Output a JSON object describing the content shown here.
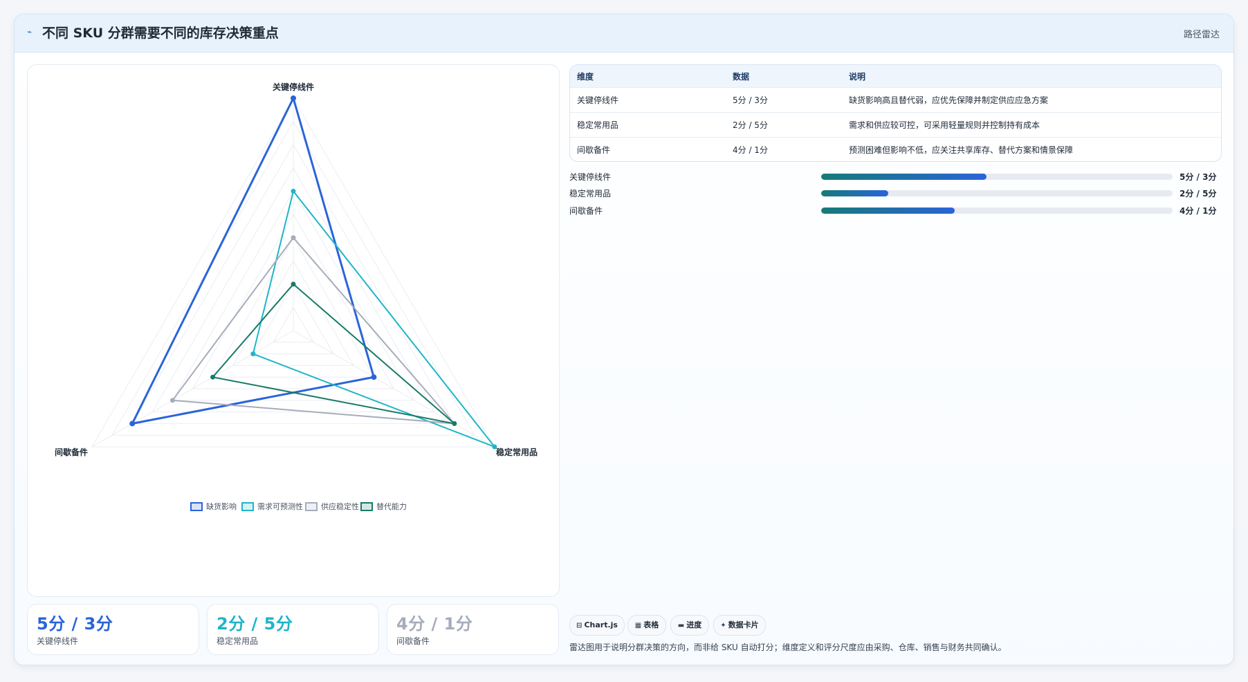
{
  "header": {
    "icon": "route-icon",
    "title": "不同 SKU 分群需要不同的库存决策重点",
    "right_label": "路径雷达"
  },
  "chart_data": {
    "type": "radar",
    "axes": [
      "关键停线件",
      "稳定常用品",
      "间歇备件"
    ],
    "range": [
      0,
      5
    ],
    "legend_position": "bottom",
    "series": [
      {
        "name": "缺货影响",
        "color": "#2a64d8",
        "values": [
          5,
          2,
          4
        ]
      },
      {
        "name": "需求可预测性",
        "color": "#1fb5c8",
        "values": [
          3,
          5,
          1
        ]
      },
      {
        "name": "供应稳定性",
        "color": "#a5acbb",
        "values": [
          2,
          4,
          3
        ]
      },
      {
        "name": "替代能力",
        "color": "#177a68",
        "values": [
          1,
          4,
          2
        ]
      }
    ]
  },
  "table": {
    "headers": [
      "维度",
      "数据",
      "说明"
    ],
    "rows": [
      [
        "关键停线件",
        "5分 / 3分",
        "缺货影响高且替代弱，应优先保障并制定供应应急方案"
      ],
      [
        "稳定常用品",
        "2分 / 5分",
        "需求和供应较可控，可采用轻量规则并控制持有成本"
      ],
      [
        "间歇备件",
        "4分 / 1分",
        "预测困难但影响不低，应关注共享库存、替代方案和情景保障"
      ]
    ]
  },
  "progress": [
    {
      "label": "关键停线件",
      "fraction": 0.47,
      "value": "5分 / 3分"
    },
    {
      "label": "稳定常用品",
      "fraction": 0.19,
      "value": "2分 / 5分"
    },
    {
      "label": "间歇备件",
      "fraction": 0.38,
      "value": "4分 / 1分"
    }
  ],
  "kpis": [
    {
      "value": "5分 / 3分",
      "label": "关键停线件",
      "color": "#2a64d8"
    },
    {
      "value": "2分 / 5分",
      "label": "稳定常用品",
      "color": "#1fb5c8"
    },
    {
      "value": "4分 / 1分",
      "label": "间歇备件",
      "color": "#a5acbb"
    }
  ],
  "chips": [
    {
      "icon": "chart-icon",
      "glyph": "⊟",
      "label": "Chart.js"
    },
    {
      "icon": "table-icon",
      "glyph": "▦",
      "label": "表格"
    },
    {
      "icon": "progress-icon",
      "glyph": "▬",
      "label": "进度"
    },
    {
      "icon": "card-icon",
      "glyph": "✦",
      "label": "数据卡片"
    }
  ],
  "footnote": "雷达图用于说明分群决策的方向，而非给 SKU 自动打分；维度定义和评分尺度应由采购、仓库、销售与财务共同确认。"
}
